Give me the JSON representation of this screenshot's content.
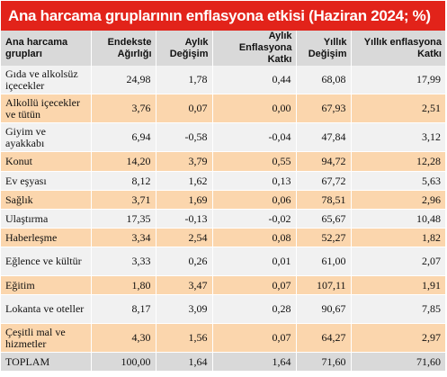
{
  "title": "Ana harcama gruplarının enflasyona etkisi (Haziran 2024; %)",
  "columns": [
    "Ana harcama grupları",
    "Endekste Ağırlığı",
    "Aylık Değişim",
    "Aylık Enflasyona Katkı",
    "Yıllık Değişim",
    "Yıllık enflasyona Katkı"
  ],
  "rows": [
    {
      "name": "Gıda ve alkolsüz içecekler",
      "weight": "24,98",
      "monthly_change": "1,78",
      "monthly_contribution": "0,44",
      "annual_change": "68,08",
      "annual_contribution": "17,99"
    },
    {
      "name": "Alkollü içecekler ve tütün",
      "weight": "3,76",
      "monthly_change": "0,07",
      "monthly_contribution": "0,00",
      "annual_change": "67,93",
      "annual_contribution": "2,51"
    },
    {
      "name": "Giyim ve ayakkabı",
      "weight": "6,94",
      "monthly_change": "-0,58",
      "monthly_contribution": "-0,04",
      "annual_change": "47,84",
      "annual_contribution": "3,12"
    },
    {
      "name": "Konut",
      "weight": "14,20",
      "monthly_change": "3,79",
      "monthly_contribution": "0,55",
      "annual_change": "94,72",
      "annual_contribution": "12,28"
    },
    {
      "name": "Ev eşyası",
      "weight": "8,12",
      "monthly_change": "1,62",
      "monthly_contribution": "0,13",
      "annual_change": "67,72",
      "annual_contribution": "5,63"
    },
    {
      "name": "Sağlık",
      "weight": "3,71",
      "monthly_change": "1,69",
      "monthly_contribution": "0,06",
      "annual_change": "78,51",
      "annual_contribution": "2,96"
    },
    {
      "name": "Ulaştırma",
      "weight": "17,35",
      "monthly_change": "-0,13",
      "monthly_contribution": "-0,02",
      "annual_change": "65,67",
      "annual_contribution": "10,48"
    },
    {
      "name": "Haberleşme",
      "weight": "3,34",
      "monthly_change": "2,54",
      "monthly_contribution": "0,08",
      "annual_change": "52,27",
      "annual_contribution": "1,82"
    },
    {
      "name": "Eğlence ve kültür",
      "weight": "3,33",
      "monthly_change": "0,26",
      "monthly_contribution": "0,01",
      "annual_change": "61,00",
      "annual_contribution": "2,07"
    },
    {
      "name": "Eğitim",
      "weight": "1,80",
      "monthly_change": "3,47",
      "monthly_contribution": "0,07",
      "annual_change": "107,11",
      "annual_contribution": "1,91"
    },
    {
      "name": "Lokanta ve oteller",
      "weight": "8,17",
      "monthly_change": "3,09",
      "monthly_contribution": "0,28",
      "annual_change": "90,67",
      "annual_contribution": "7,85"
    },
    {
      "name": "Çeşitli mal ve hizmetler",
      "weight": "4,30",
      "monthly_change": "1,56",
      "monthly_contribution": "0,07",
      "annual_change": "64,27",
      "annual_contribution": "2,97"
    },
    {
      "name": "TOPLAM",
      "weight": "100,00",
      "monthly_change": "1,64",
      "monthly_contribution": "1,64",
      "annual_change": "71,60",
      "annual_contribution": "71,60"
    }
  ],
  "colors": {
    "title_background": "#e2231a",
    "header_background": "#d9d9d9",
    "row_light": "#f1f1f1",
    "row_orange": "#fbd6ad"
  }
}
